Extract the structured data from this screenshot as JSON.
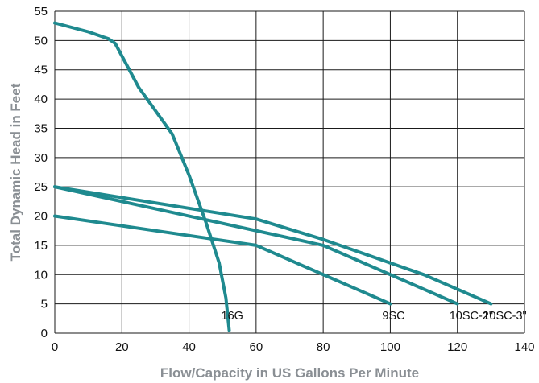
{
  "chart_data": {
    "type": "line",
    "xlabel": "Flow/Capacity in US Gallons Per Minute",
    "ylabel": "Total Dynamic Head in Feet",
    "xlim": [
      0,
      140
    ],
    "ylim": [
      0,
      55
    ],
    "x_ticks": [
      0,
      20,
      40,
      60,
      80,
      100,
      120,
      140
    ],
    "y_ticks": [
      0,
      5,
      10,
      15,
      20,
      25,
      30,
      35,
      40,
      45,
      50,
      55
    ],
    "grid": true,
    "line_color": "#1f8a8f",
    "series": [
      {
        "name": "16G",
        "points": [
          [
            0,
            53
          ],
          [
            10,
            51.5
          ],
          [
            16,
            50.3
          ],
          [
            18,
            49.5
          ],
          [
            25,
            42
          ],
          [
            35,
            34
          ],
          [
            40,
            27
          ],
          [
            45,
            19
          ],
          [
            49,
            12
          ],
          [
            51,
            6
          ],
          [
            52,
            0.5
          ]
        ]
      },
      {
        "name": "9SC",
        "points": [
          [
            0,
            20
          ],
          [
            60,
            15
          ],
          [
            100,
            5
          ]
        ]
      },
      {
        "name": "10SC-2\"",
        "points": [
          [
            0,
            25
          ],
          [
            80,
            15
          ],
          [
            120,
            5
          ]
        ]
      },
      {
        "name": "10SC-3\"",
        "points": [
          [
            0,
            25
          ],
          [
            60,
            19.5
          ],
          [
            80,
            16
          ],
          [
            110,
            10
          ],
          [
            130,
            5
          ]
        ]
      }
    ]
  }
}
